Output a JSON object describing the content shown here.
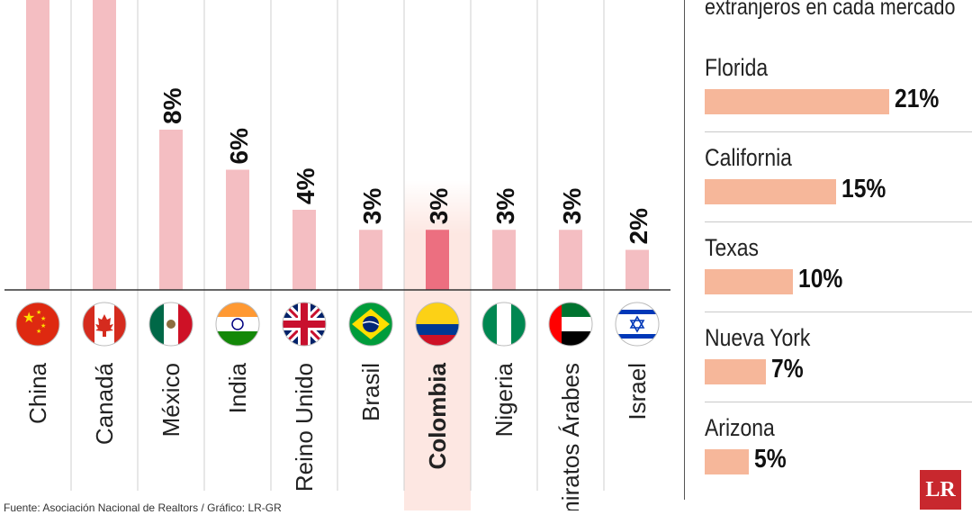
{
  "chart_data": [
    {
      "type": "bar",
      "categories": [
        "China",
        "Canadá",
        "México",
        "India",
        "Reino Unido",
        "Brasil",
        "Colombia",
        "Nigeria",
        "Emiratos Árabes",
        "Israel"
      ],
      "values": [
        null,
        null,
        8,
        6,
        4,
        3,
        3,
        3,
        3,
        2
      ],
      "value_labels": [
        "",
        "",
        "8%",
        "6%",
        "4%",
        "3%",
        "3%",
        "3%",
        "3%",
        "2%"
      ],
      "highlight": "Colombia",
      "colors": {
        "bar": "#f4bec2",
        "highlight_bar": "#ec6f80",
        "highlight_band": "#fde7e2"
      }
    },
    {
      "type": "bar",
      "orientation": "horizontal",
      "title": "extranjeros en cada mercado",
      "categories": [
        "Florida",
        "California",
        "Texas",
        "Nueva York",
        "Arizona"
      ],
      "values": [
        21,
        15,
        10,
        7,
        5
      ],
      "value_labels": [
        "21%",
        "15%",
        "10%",
        "7%",
        "5%"
      ],
      "colors": {
        "bar": "#f6b79a"
      }
    }
  ],
  "logo": "LR",
  "source": "Fuente: Asociación Nacional de Realtors / Gráfico: LR-GR"
}
